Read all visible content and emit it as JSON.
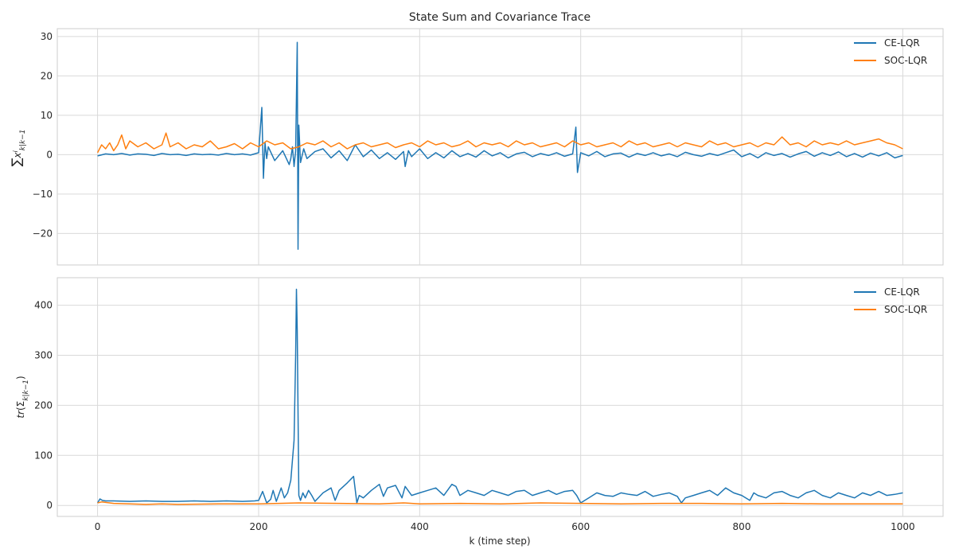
{
  "chart_data": [
    {
      "type": "line",
      "title": "State Sum and Covariance Trace",
      "ylabel": "∑x^i_{k|k−1}",
      "xlabel": "",
      "xlim": [
        -50,
        1050
      ],
      "ylim": [
        -28,
        32
      ],
      "xticks": [
        0,
        200,
        400,
        600,
        800,
        1000
      ],
      "yticks": [
        -20,
        -10,
        0,
        10,
        20,
        30
      ],
      "ytick_labels": [
        "−20",
        "−10",
        "0",
        "10",
        "20",
        "30"
      ],
      "grid": true,
      "legend_position": "top-right",
      "series": [
        {
          "name": "CE-LQR",
          "color": "#1f77b4",
          "x": [
            0,
            10,
            20,
            30,
            40,
            50,
            60,
            70,
            80,
            90,
            100,
            110,
            120,
            130,
            140,
            150,
            160,
            170,
            180,
            190,
            200,
            204,
            206,
            208,
            210,
            212,
            220,
            230,
            238,
            240,
            242,
            244,
            246,
            248,
            249,
            250,
            252,
            256,
            260,
            270,
            280,
            290,
            300,
            310,
            320,
            330,
            340,
            350,
            360,
            370,
            380,
            382,
            386,
            390,
            400,
            410,
            420,
            430,
            440,
            450,
            460,
            470,
            480,
            490,
            500,
            510,
            520,
            530,
            540,
            550,
            560,
            570,
            580,
            590,
            594,
            596,
            600,
            610,
            620,
            630,
            640,
            650,
            660,
            670,
            680,
            690,
            700,
            710,
            720,
            730,
            740,
            750,
            760,
            770,
            780,
            790,
            800,
            810,
            820,
            830,
            840,
            850,
            860,
            870,
            880,
            890,
            900,
            910,
            920,
            930,
            940,
            950,
            960,
            970,
            980,
            990,
            1000
          ],
          "y": [
            -0.3,
            0.2,
            0.0,
            0.3,
            -0.1,
            0.2,
            0.1,
            -0.2,
            0.3,
            0.0,
            0.1,
            -0.2,
            0.2,
            0.0,
            0.1,
            -0.1,
            0.3,
            0.0,
            0.2,
            -0.1,
            0.5,
            12.0,
            -6.0,
            3.0,
            -1.0,
            2.0,
            -1.5,
            1.0,
            -2.5,
            -1.0,
            2.0,
            -3.0,
            1.0,
            28.5,
            -24.0,
            7.5,
            -2.0,
            1.5,
            -1.0,
            0.8,
            1.5,
            -0.8,
            1.0,
            -1.5,
            2.5,
            -0.5,
            1.2,
            -1.0,
            0.5,
            -1.2,
            0.8,
            -3.0,
            1.0,
            -0.5,
            1.5,
            -1.0,
            0.5,
            -0.8,
            1.0,
            -0.5,
            0.3,
            -0.6,
            1.0,
            -0.3,
            0.5,
            -0.8,
            0.2,
            0.6,
            -0.5,
            0.3,
            -0.2,
            0.5,
            -0.4,
            0.2,
            7.0,
            -4.5,
            0.5,
            -0.3,
            0.8,
            -0.5,
            0.2,
            0.4,
            -0.6,
            0.3,
            -0.2,
            0.5,
            -0.3,
            0.2,
            -0.5,
            0.6,
            0.0,
            -0.4,
            0.3,
            -0.2,
            0.5,
            1.2,
            -0.5,
            0.3,
            -0.8,
            0.5,
            -0.2,
            0.3,
            -0.6,
            0.2,
            0.8,
            -0.4,
            0.5,
            -0.2,
            0.7,
            -0.5,
            0.3,
            -0.6,
            0.4,
            -0.3,
            0.5,
            -0.8,
            -0.2
          ]
        },
        {
          "name": "SOC-LQR",
          "color": "#ff7f0e",
          "x": [
            0,
            5,
            10,
            15,
            20,
            25,
            30,
            35,
            40,
            50,
            60,
            70,
            80,
            85,
            90,
            100,
            110,
            120,
            130,
            140,
            150,
            160,
            170,
            180,
            190,
            200,
            210,
            220,
            230,
            240,
            250,
            260,
            270,
            280,
            290,
            300,
            310,
            320,
            330,
            340,
            350,
            360,
            370,
            380,
            390,
            400,
            410,
            420,
            430,
            440,
            450,
            460,
            470,
            480,
            490,
            500,
            510,
            520,
            530,
            540,
            550,
            560,
            570,
            580,
            590,
            600,
            610,
            620,
            630,
            640,
            650,
            660,
            670,
            680,
            690,
            700,
            710,
            720,
            730,
            740,
            750,
            760,
            770,
            780,
            790,
            800,
            810,
            820,
            830,
            840,
            850,
            860,
            870,
            880,
            890,
            900,
            910,
            920,
            930,
            940,
            950,
            960,
            970,
            980,
            990,
            1000
          ],
          "y": [
            0.5,
            2.5,
            1.5,
            3.0,
            1.0,
            2.5,
            5.0,
            1.5,
            3.5,
            2.0,
            3.0,
            1.5,
            2.5,
            5.5,
            2.0,
            3.0,
            1.5,
            2.5,
            2.0,
            3.5,
            1.5,
            2.0,
            2.8,
            1.5,
            3.0,
            2.0,
            3.5,
            2.5,
            3.0,
            1.5,
            2.0,
            3.0,
            2.5,
            3.5,
            2.0,
            3.0,
            1.5,
            2.5,
            3.0,
            2.0,
            2.5,
            3.0,
            1.8,
            2.5,
            3.0,
            2.0,
            3.5,
            2.5,
            3.0,
            2.0,
            2.5,
            3.5,
            2.0,
            3.0,
            2.5,
            3.0,
            2.0,
            3.5,
            2.5,
            3.0,
            2.0,
            2.5,
            3.0,
            2.0,
            3.5,
            2.5,
            3.0,
            2.0,
            2.5,
            3.0,
            2.0,
            3.5,
            2.5,
            3.0,
            2.0,
            2.5,
            3.0,
            2.0,
            3.0,
            2.5,
            2.0,
            3.5,
            2.5,
            3.0,
            2.0,
            2.5,
            3.0,
            2.0,
            3.0,
            2.5,
            4.5,
            2.5,
            3.0,
            2.0,
            3.5,
            2.5,
            3.0,
            2.5,
            3.5,
            2.5,
            3.0,
            3.5,
            4.0,
            3.0,
            2.5,
            1.5
          ]
        }
      ]
    },
    {
      "type": "line",
      "title": "",
      "ylabel": "tr(Σ_{k|k−1})",
      "xlabel": "k (time step)",
      "xlim": [
        -50,
        1050
      ],
      "ylim": [
        -22,
        455
      ],
      "xticks": [
        0,
        200,
        400,
        600,
        800,
        1000
      ],
      "yticks": [
        0,
        100,
        200,
        300,
        400
      ],
      "ytick_labels": [
        "0",
        "100",
        "200",
        "300",
        "400"
      ],
      "grid": true,
      "legend_position": "top-right",
      "series": [
        {
          "name": "CE-LQR",
          "color": "#1f77b4",
          "x": [
            0,
            3,
            6,
            10,
            20,
            40,
            60,
            80,
            100,
            120,
            140,
            160,
            180,
            195,
            200,
            205,
            210,
            215,
            218,
            222,
            228,
            232,
            236,
            240,
            244,
            246,
            247,
            248,
            250,
            252,
            255,
            258,
            262,
            266,
            270,
            280,
            290,
            295,
            300,
            310,
            318,
            322,
            325,
            330,
            340,
            350,
            355,
            360,
            370,
            378,
            382,
            390,
            400,
            410,
            420,
            430,
            440,
            445,
            450,
            460,
            470,
            480,
            490,
            500,
            510,
            520,
            530,
            540,
            550,
            560,
            570,
            580,
            590,
            595,
            600,
            610,
            620,
            630,
            640,
            650,
            660,
            670,
            680,
            690,
            700,
            710,
            720,
            725,
            730,
            740,
            750,
            760,
            770,
            780,
            790,
            800,
            810,
            815,
            820,
            830,
            840,
            850,
            860,
            870,
            880,
            890,
            900,
            910,
            920,
            930,
            940,
            950,
            960,
            970,
            980,
            990,
            1000
          ],
          "y": [
            5,
            13,
            10,
            9,
            9,
            8,
            9,
            8,
            8,
            9,
            8,
            9,
            8,
            9,
            10,
            28,
            5,
            12,
            30,
            8,
            35,
            15,
            25,
            50,
            130,
            300,
            432,
            350,
            20,
            10,
            25,
            15,
            30,
            20,
            8,
            25,
            35,
            10,
            30,
            45,
            58,
            5,
            20,
            15,
            30,
            42,
            18,
            35,
            40,
            15,
            38,
            20,
            25,
            30,
            35,
            20,
            42,
            38,
            20,
            30,
            25,
            20,
            30,
            25,
            20,
            28,
            30,
            20,
            25,
            30,
            22,
            28,
            30,
            20,
            5,
            15,
            25,
            20,
            18,
            25,
            22,
            20,
            28,
            18,
            22,
            25,
            18,
            5,
            15,
            20,
            25,
            30,
            20,
            35,
            25,
            20,
            10,
            25,
            20,
            15,
            25,
            28,
            20,
            15,
            25,
            30,
            20,
            15,
            25,
            20,
            15,
            25,
            20,
            28,
            20,
            22,
            25
          ]
        },
        {
          "name": "SOC-LQR",
          "color": "#ff7f0e",
          "x": [
            0,
            5,
            10,
            20,
            40,
            60,
            80,
            100,
            150,
            200,
            250,
            300,
            350,
            380,
            400,
            450,
            500,
            550,
            600,
            650,
            700,
            750,
            800,
            850,
            900,
            950,
            1000
          ],
          "y": [
            5,
            7,
            6,
            4,
            3,
            2,
            3,
            2,
            3,
            3,
            5,
            4,
            3,
            5,
            3,
            4,
            3,
            5,
            4,
            3,
            4,
            4,
            3,
            4,
            3,
            3,
            3
          ]
        }
      ]
    }
  ]
}
